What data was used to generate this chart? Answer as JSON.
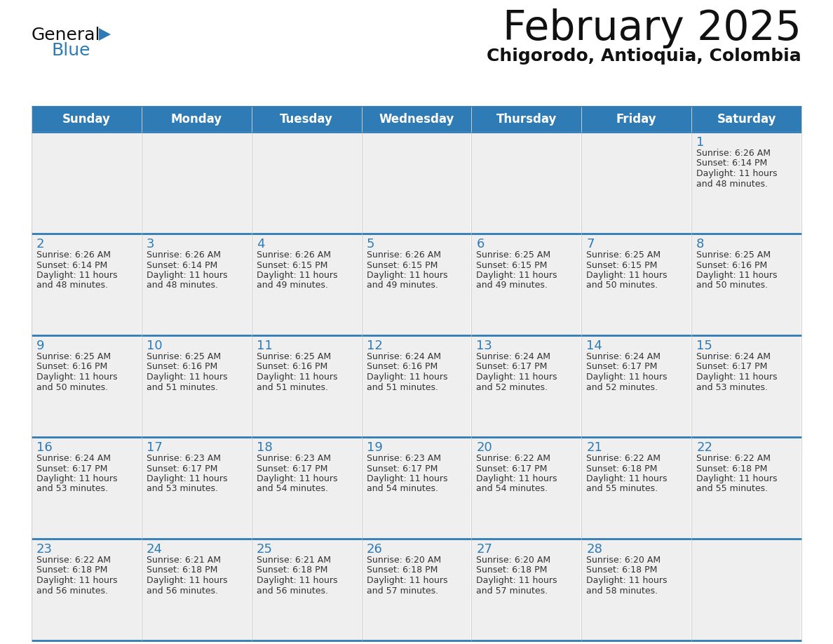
{
  "title": "February 2025",
  "subtitle": "Chigorodo, Antioquia, Colombia",
  "header_bg": "#2E7BB5",
  "header_text_color": "#FFFFFF",
  "cell_bg": "#EFEFEF",
  "day_number_color": "#2E7BB5",
  "cell_text_color": "#333333",
  "border_color": "#2E7BB5",
  "days_of_week": [
    "Sunday",
    "Monday",
    "Tuesday",
    "Wednesday",
    "Thursday",
    "Friday",
    "Saturday"
  ],
  "calendar_data": [
    [
      null,
      null,
      null,
      null,
      null,
      null,
      {
        "day": "1",
        "sunrise": "6:26 AM",
        "sunset": "6:14 PM",
        "dl_line1": "Daylight: 11 hours",
        "dl_line2": "and 48 minutes."
      }
    ],
    [
      {
        "day": "2",
        "sunrise": "6:26 AM",
        "sunset": "6:14 PM",
        "dl_line1": "Daylight: 11 hours",
        "dl_line2": "and 48 minutes."
      },
      {
        "day": "3",
        "sunrise": "6:26 AM",
        "sunset": "6:14 PM",
        "dl_line1": "Daylight: 11 hours",
        "dl_line2": "and 48 minutes."
      },
      {
        "day": "4",
        "sunrise": "6:26 AM",
        "sunset": "6:15 PM",
        "dl_line1": "Daylight: 11 hours",
        "dl_line2": "and 49 minutes."
      },
      {
        "day": "5",
        "sunrise": "6:26 AM",
        "sunset": "6:15 PM",
        "dl_line1": "Daylight: 11 hours",
        "dl_line2": "and 49 minutes."
      },
      {
        "day": "6",
        "sunrise": "6:25 AM",
        "sunset": "6:15 PM",
        "dl_line1": "Daylight: 11 hours",
        "dl_line2": "and 49 minutes."
      },
      {
        "day": "7",
        "sunrise": "6:25 AM",
        "sunset": "6:15 PM",
        "dl_line1": "Daylight: 11 hours",
        "dl_line2": "and 50 minutes."
      },
      {
        "day": "8",
        "sunrise": "6:25 AM",
        "sunset": "6:16 PM",
        "dl_line1": "Daylight: 11 hours",
        "dl_line2": "and 50 minutes."
      }
    ],
    [
      {
        "day": "9",
        "sunrise": "6:25 AM",
        "sunset": "6:16 PM",
        "dl_line1": "Daylight: 11 hours",
        "dl_line2": "and 50 minutes."
      },
      {
        "day": "10",
        "sunrise": "6:25 AM",
        "sunset": "6:16 PM",
        "dl_line1": "Daylight: 11 hours",
        "dl_line2": "and 51 minutes."
      },
      {
        "day": "11",
        "sunrise": "6:25 AM",
        "sunset": "6:16 PM",
        "dl_line1": "Daylight: 11 hours",
        "dl_line2": "and 51 minutes."
      },
      {
        "day": "12",
        "sunrise": "6:24 AM",
        "sunset": "6:16 PM",
        "dl_line1": "Daylight: 11 hours",
        "dl_line2": "and 51 minutes."
      },
      {
        "day": "13",
        "sunrise": "6:24 AM",
        "sunset": "6:17 PM",
        "dl_line1": "Daylight: 11 hours",
        "dl_line2": "and 52 minutes."
      },
      {
        "day": "14",
        "sunrise": "6:24 AM",
        "sunset": "6:17 PM",
        "dl_line1": "Daylight: 11 hours",
        "dl_line2": "and 52 minutes."
      },
      {
        "day": "15",
        "sunrise": "6:24 AM",
        "sunset": "6:17 PM",
        "dl_line1": "Daylight: 11 hours",
        "dl_line2": "and 53 minutes."
      }
    ],
    [
      {
        "day": "16",
        "sunrise": "6:24 AM",
        "sunset": "6:17 PM",
        "dl_line1": "Daylight: 11 hours",
        "dl_line2": "and 53 minutes."
      },
      {
        "day": "17",
        "sunrise": "6:23 AM",
        "sunset": "6:17 PM",
        "dl_line1": "Daylight: 11 hours",
        "dl_line2": "and 53 minutes."
      },
      {
        "day": "18",
        "sunrise": "6:23 AM",
        "sunset": "6:17 PM",
        "dl_line1": "Daylight: 11 hours",
        "dl_line2": "and 54 minutes."
      },
      {
        "day": "19",
        "sunrise": "6:23 AM",
        "sunset": "6:17 PM",
        "dl_line1": "Daylight: 11 hours",
        "dl_line2": "and 54 minutes."
      },
      {
        "day": "20",
        "sunrise": "6:22 AM",
        "sunset": "6:17 PM",
        "dl_line1": "Daylight: 11 hours",
        "dl_line2": "and 54 minutes."
      },
      {
        "day": "21",
        "sunrise": "6:22 AM",
        "sunset": "6:18 PM",
        "dl_line1": "Daylight: 11 hours",
        "dl_line2": "and 55 minutes."
      },
      {
        "day": "22",
        "sunrise": "6:22 AM",
        "sunset": "6:18 PM",
        "dl_line1": "Daylight: 11 hours",
        "dl_line2": "and 55 minutes."
      }
    ],
    [
      {
        "day": "23",
        "sunrise": "6:22 AM",
        "sunset": "6:18 PM",
        "dl_line1": "Daylight: 11 hours",
        "dl_line2": "and 56 minutes."
      },
      {
        "day": "24",
        "sunrise": "6:21 AM",
        "sunset": "6:18 PM",
        "dl_line1": "Daylight: 11 hours",
        "dl_line2": "and 56 minutes."
      },
      {
        "day": "25",
        "sunrise": "6:21 AM",
        "sunset": "6:18 PM",
        "dl_line1": "Daylight: 11 hours",
        "dl_line2": "and 56 minutes."
      },
      {
        "day": "26",
        "sunrise": "6:20 AM",
        "sunset": "6:18 PM",
        "dl_line1": "Daylight: 11 hours",
        "dl_line2": "and 57 minutes."
      },
      {
        "day": "27",
        "sunrise": "6:20 AM",
        "sunset": "6:18 PM",
        "dl_line1": "Daylight: 11 hours",
        "dl_line2": "and 57 minutes."
      },
      {
        "day": "28",
        "sunrise": "6:20 AM",
        "sunset": "6:18 PM",
        "dl_line1": "Daylight: 11 hours",
        "dl_line2": "and 58 minutes."
      },
      null
    ]
  ],
  "logo_general_color": "#111111",
  "logo_blue_color": "#2E7BB5",
  "title_fontsize": 42,
  "subtitle_fontsize": 18,
  "header_fontsize": 12,
  "day_num_fontsize": 13,
  "cell_text_fontsize": 9
}
